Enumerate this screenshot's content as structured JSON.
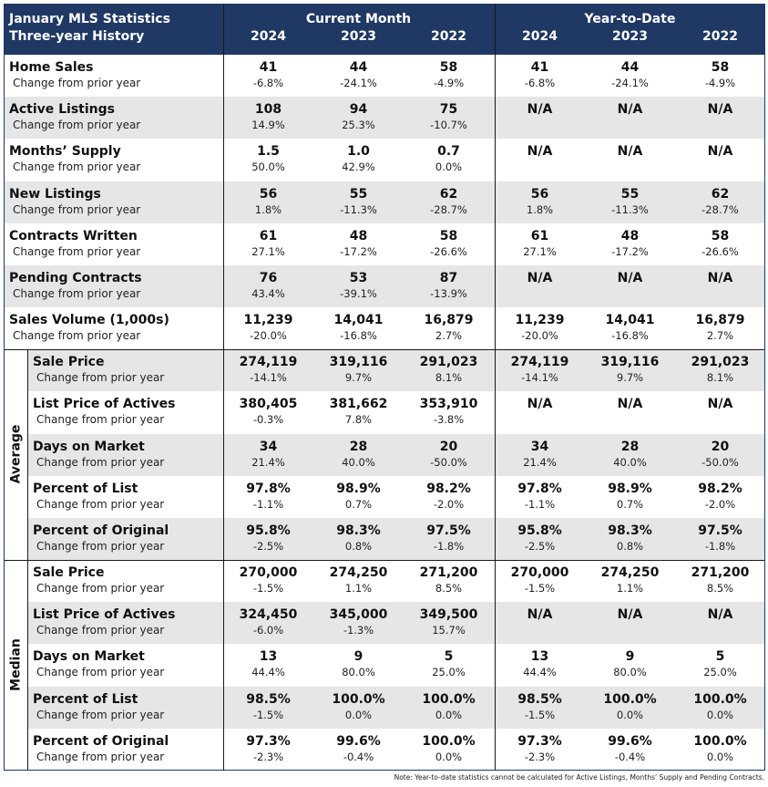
{
  "header": {
    "title": [
      "January MLS Statistics",
      "Three-year History"
    ],
    "groups": [
      "Current Month",
      "Year-to-Date"
    ],
    "years": [
      "2024",
      "2023",
      "2022",
      "2024",
      "2023",
      "2022"
    ]
  },
  "sections": [
    {
      "rows": [
        {
          "label": "Home Sales",
          "sub": "Change from prior year",
          "cells": [
            {
              "value": "41",
              "change": "-6.8%"
            },
            {
              "value": "44",
              "change": "-24.1%"
            },
            {
              "value": "58",
              "change": "-4.9%"
            },
            {
              "value": "41",
              "change": "-6.8%"
            },
            {
              "value": "44",
              "change": "-24.1%"
            },
            {
              "value": "58",
              "change": "-4.9%"
            }
          ]
        },
        {
          "label": "Active Listings",
          "sub": "Change from prior year",
          "cells": [
            {
              "value": "108",
              "change": "14.9%"
            },
            {
              "value": "94",
              "change": "25.3%"
            },
            {
              "value": "75",
              "change": "-10.7%"
            },
            {
              "value": "N/A"
            },
            {
              "value": "N/A"
            },
            {
              "value": "N/A"
            }
          ]
        },
        {
          "label": "Months’ Supply",
          "sub": "Change from prior year",
          "cells": [
            {
              "value": "1.5",
              "change": "50.0%"
            },
            {
              "value": "1.0",
              "change": "42.9%"
            },
            {
              "value": "0.7",
              "change": "0.0%"
            },
            {
              "value": "N/A"
            },
            {
              "value": "N/A"
            },
            {
              "value": "N/A"
            }
          ]
        },
        {
          "label": "New Listings",
          "sub": "Change from prior year",
          "cells": [
            {
              "value": "56",
              "change": "1.8%"
            },
            {
              "value": "55",
              "change": "-11.3%"
            },
            {
              "value": "62",
              "change": "-28.7%"
            },
            {
              "value": "56",
              "change": "1.8%"
            },
            {
              "value": "55",
              "change": "-11.3%"
            },
            {
              "value": "62",
              "change": "-28.7%"
            }
          ]
        },
        {
          "label": "Contracts Written",
          "sub": "Change from prior year",
          "cells": [
            {
              "value": "61",
              "change": "27.1%"
            },
            {
              "value": "48",
              "change": "-17.2%"
            },
            {
              "value": "58",
              "change": "-26.6%"
            },
            {
              "value": "61",
              "change": "27.1%"
            },
            {
              "value": "48",
              "change": "-17.2%"
            },
            {
              "value": "58",
              "change": "-26.6%"
            }
          ]
        },
        {
          "label": "Pending Contracts",
          "sub": "Change from prior year",
          "cells": [
            {
              "value": "76",
              "change": "43.4%"
            },
            {
              "value": "53",
              "change": "-39.1%"
            },
            {
              "value": "87",
              "change": "-13.9%"
            },
            {
              "value": "N/A"
            },
            {
              "value": "N/A"
            },
            {
              "value": "N/A"
            }
          ]
        },
        {
          "label": "Sales Volume (1,000s)",
          "sub": "Change from prior year",
          "cells": [
            {
              "value": "11,239",
              "change": "-20.0%"
            },
            {
              "value": "14,041",
              "change": "-16.8%"
            },
            {
              "value": "16,879",
              "change": "2.7%"
            },
            {
              "value": "11,239",
              "change": "-20.0%"
            },
            {
              "value": "14,041",
              "change": "-16.8%"
            },
            {
              "value": "16,879",
              "change": "2.7%"
            }
          ]
        }
      ]
    },
    {
      "label": "Average",
      "rows": [
        {
          "label": "Sale Price",
          "sub": "Change from prior year",
          "cells": [
            {
              "value": "274,119",
              "change": "-14.1%"
            },
            {
              "value": "319,116",
              "change": "9.7%"
            },
            {
              "value": "291,023",
              "change": "8.1%"
            },
            {
              "value": "274,119",
              "change": "-14.1%"
            },
            {
              "value": "319,116",
              "change": "9.7%"
            },
            {
              "value": "291,023",
              "change": "8.1%"
            }
          ]
        },
        {
          "label": "List Price of Actives",
          "sub": "Change from prior year",
          "cells": [
            {
              "value": "380,405",
              "change": "-0.3%"
            },
            {
              "value": "381,662",
              "change": "7.8%"
            },
            {
              "value": "353,910",
              "change": "-3.8%"
            },
            {
              "value": "N/A"
            },
            {
              "value": "N/A"
            },
            {
              "value": "N/A"
            }
          ]
        },
        {
          "label": "Days on Market",
          "sub": "Change from prior year",
          "cells": [
            {
              "value": "34",
              "change": "21.4%"
            },
            {
              "value": "28",
              "change": "40.0%"
            },
            {
              "value": "20",
              "change": "-50.0%"
            },
            {
              "value": "34",
              "change": "21.4%"
            },
            {
              "value": "28",
              "change": "40.0%"
            },
            {
              "value": "20",
              "change": "-50.0%"
            }
          ]
        },
        {
          "label": "Percent of List",
          "sub": "Change from prior year",
          "cells": [
            {
              "value": "97.8%",
              "change": "-1.1%"
            },
            {
              "value": "98.9%",
              "change": "0.7%"
            },
            {
              "value": "98.2%",
              "change": "-2.0%"
            },
            {
              "value": "97.8%",
              "change": "-1.1%"
            },
            {
              "value": "98.9%",
              "change": "0.7%"
            },
            {
              "value": "98.2%",
              "change": "-2.0%"
            }
          ]
        },
        {
          "label": "Percent of Original",
          "sub": "Change from prior year",
          "cells": [
            {
              "value": "95.8%",
              "change": "-2.5%"
            },
            {
              "value": "98.3%",
              "change": "0.8%"
            },
            {
              "value": "97.5%",
              "change": "-1.8%"
            },
            {
              "value": "95.8%",
              "change": "-2.5%"
            },
            {
              "value": "98.3%",
              "change": "0.8%"
            },
            {
              "value": "97.5%",
              "change": "-1.8%"
            }
          ]
        }
      ]
    },
    {
      "label": "Median",
      "rows": [
        {
          "label": "Sale Price",
          "sub": "Change from prior year",
          "cells": [
            {
              "value": "270,000",
              "change": "-1.5%"
            },
            {
              "value": "274,250",
              "change": "1.1%"
            },
            {
              "value": "271,200",
              "change": "8.5%"
            },
            {
              "value": "270,000",
              "change": "-1.5%"
            },
            {
              "value": "274,250",
              "change": "1.1%"
            },
            {
              "value": "271,200",
              "change": "8.5%"
            }
          ]
        },
        {
          "label": "List Price of Actives",
          "sub": "Change from prior year",
          "cells": [
            {
              "value": "324,450",
              "change": "-6.0%"
            },
            {
              "value": "345,000",
              "change": "-1.3%"
            },
            {
              "value": "349,500",
              "change": "15.7%"
            },
            {
              "value": "N/A"
            },
            {
              "value": "N/A"
            },
            {
              "value": "N/A"
            }
          ]
        },
        {
          "label": "Days on Market",
          "sub": "Change from prior year",
          "cells": [
            {
              "value": "13",
              "change": "44.4%"
            },
            {
              "value": "9",
              "change": "80.0%"
            },
            {
              "value": "5",
              "change": "25.0%"
            },
            {
              "value": "13",
              "change": "44.4%"
            },
            {
              "value": "9",
              "change": "80.0%"
            },
            {
              "value": "5",
              "change": "25.0%"
            }
          ]
        },
        {
          "label": "Percent of List",
          "sub": "Change from prior year",
          "cells": [
            {
              "value": "98.5%",
              "change": "-1.5%"
            },
            {
              "value": "100.0%",
              "change": "0.0%"
            },
            {
              "value": "100.0%",
              "change": "0.0%"
            },
            {
              "value": "98.5%",
              "change": "-1.5%"
            },
            {
              "value": "100.0%",
              "change": "0.0%"
            },
            {
              "value": "100.0%",
              "change": "0.0%"
            }
          ]
        },
        {
          "label": "Percent of Original",
          "sub": "Change from prior year",
          "cells": [
            {
              "value": "97.3%",
              "change": "-2.3%"
            },
            {
              "value": "99.6%",
              "change": "-0.4%"
            },
            {
              "value": "100.0%",
              "change": "0.0%"
            },
            {
              "value": "97.3%",
              "change": "-2.3%"
            },
            {
              "value": "99.6%",
              "change": "-0.4%"
            },
            {
              "value": "100.0%",
              "change": "0.0%"
            }
          ]
        }
      ]
    }
  ],
  "note": "Note: Year-to-date statistics cannot be calculated for Active Listings, Months’ Supply and Pending Contracts."
}
